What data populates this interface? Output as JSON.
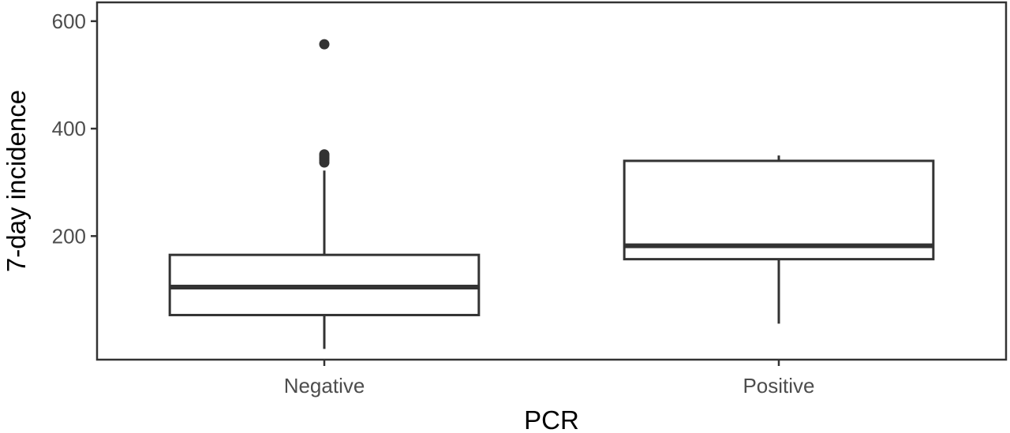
{
  "chart_data": {
    "type": "boxplot",
    "title": "",
    "xlabel": "PCR",
    "ylabel": "7-day incidence",
    "ylim": [
      -30,
      635
    ],
    "yticks": [
      200,
      400,
      600
    ],
    "grid": false,
    "categories": [
      "Negative",
      "Positive"
    ],
    "boxes": [
      {
        "category": "Negative",
        "whisker_low": -10,
        "q1": 53,
        "median": 105,
        "q3": 165,
        "whisker_high": 322,
        "outliers": [
          337,
          341,
          345,
          349,
          352,
          557
        ]
      },
      {
        "category": "Positive",
        "whisker_low": 37,
        "q1": 157,
        "median": 182,
        "q3": 340,
        "whisker_high": 350,
        "outliers": []
      }
    ],
    "colors": {
      "box_stroke": "#333333",
      "box_fill": "#ffffff",
      "outlier": "#333333",
      "panel_border": "#333333",
      "tick_label": "#4d4d4d",
      "axis_title": "#000000"
    }
  }
}
